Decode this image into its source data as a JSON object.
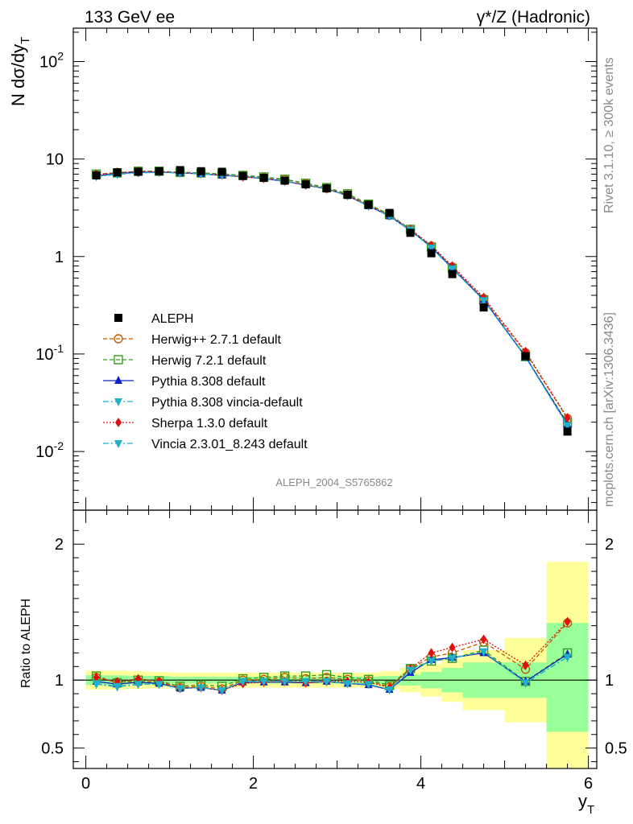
{
  "header": {
    "left_title": "133 GeV ee",
    "right_title": "γ*/Z (Hadronic)"
  },
  "side_labels": {
    "rivet": "Rivet 3.1.10, ≥ 300k events",
    "mcplots": "mcplots.cern.ch [arXiv:1306.3436]"
  },
  "analysis_id": "ALEPH_2004_S5765862",
  "chart_data": [
    {
      "type": "line",
      "panel": "main",
      "ylabel": "N dσ/dy_T",
      "yscale": "log",
      "ylim": [
        0.0025,
        220
      ],
      "xlim": [
        -0.15,
        6.1
      ],
      "yticks": [
        {
          "v": 0.01,
          "label": "10^-2"
        },
        {
          "v": 0.1,
          "label": "10^-1"
        },
        {
          "v": 1,
          "label": "1"
        },
        {
          "v": 10,
          "label": "10"
        },
        {
          "v": 100,
          "label": "10^2"
        }
      ],
      "x": [
        0.125,
        0.375,
        0.625,
        0.875,
        1.125,
        1.375,
        1.625,
        1.875,
        2.125,
        2.375,
        2.625,
        2.875,
        3.125,
        3.375,
        3.625,
        3.875,
        4.125,
        4.375,
        4.75,
        5.25,
        5.75
      ],
      "data": {
        "name": "ALEPH",
        "values": [
          6.8,
          7.3,
          7.4,
          7.5,
          7.7,
          7.5,
          7.4,
          6.7,
          6.4,
          6.0,
          5.5,
          5.0,
          4.3,
          3.4,
          2.8,
          1.75,
          1.08,
          0.66,
          0.3,
          0.095,
          0.016
        ]
      },
      "series": [
        {
          "name": "Herwig++ 2.7.1 default",
          "color": "#c05a00",
          "dash": "5,3",
          "marker": "circle-open",
          "values": [
            6.9,
            7.3,
            7.4,
            7.45,
            7.3,
            7.2,
            7.0,
            6.75,
            6.45,
            6.15,
            5.6,
            5.0,
            4.3,
            3.4,
            2.65,
            1.9,
            1.28,
            0.78,
            0.37,
            0.103,
            0.0218
          ]
        },
        {
          "name": "Herwig 7.2.1 default",
          "color": "#3a9a20",
          "dash": "5,3",
          "marker": "square-open",
          "values": [
            7.0,
            7.2,
            7.5,
            7.5,
            7.3,
            7.2,
            7.05,
            6.8,
            6.55,
            6.2,
            5.65,
            5.1,
            4.4,
            3.45,
            2.7,
            1.9,
            1.25,
            0.76,
            0.36,
            0.094,
            0.0195
          ]
        },
        {
          "name": "Pythia 8.308 default",
          "color": "#1020c0",
          "dash": "",
          "marker": "triangle-up",
          "values": [
            6.7,
            7.1,
            7.3,
            7.35,
            7.2,
            7.05,
            6.8,
            6.6,
            6.3,
            5.9,
            5.4,
            4.95,
            4.2,
            3.3,
            2.6,
            1.85,
            1.25,
            0.76,
            0.36,
            0.094,
            0.019
          ]
        },
        {
          "name": "Pythia 8.308 vincia-default",
          "color": "#20b0c8",
          "dash": "7,3,2,3",
          "marker": "triangle-down",
          "values": [
            6.6,
            6.95,
            7.2,
            7.3,
            7.2,
            7.05,
            6.85,
            6.65,
            6.35,
            5.95,
            5.45,
            4.95,
            4.2,
            3.3,
            2.6,
            1.88,
            1.23,
            0.75,
            0.355,
            0.093,
            0.0185
          ]
        },
        {
          "name": "Sherpa 1.3.0 default",
          "color": "#e01010",
          "dash": "2,2",
          "marker": "diamond",
          "values": [
            6.95,
            7.2,
            7.5,
            7.4,
            7.25,
            7.1,
            6.85,
            6.55,
            6.3,
            5.95,
            5.4,
            4.95,
            4.25,
            3.35,
            2.65,
            1.9,
            1.3,
            0.8,
            0.38,
            0.106,
            0.0222
          ]
        },
        {
          "name": "Vincia 2.3.01_8.243 default",
          "color": "#20b0c8",
          "dash": "7,3,2,3",
          "marker": "triangle-down",
          "values": [
            6.65,
            7.0,
            7.25,
            7.3,
            7.2,
            7.05,
            6.85,
            6.65,
            6.35,
            5.95,
            5.45,
            4.95,
            4.2,
            3.3,
            2.6,
            1.88,
            1.23,
            0.75,
            0.355,
            0.093,
            0.0185
          ]
        }
      ]
    },
    {
      "type": "line",
      "panel": "ratio",
      "ylabel": "Ratio to ALEPH",
      "xlabel": "y_T",
      "ylim": [
        0.35,
        2.25
      ],
      "xlim": [
        -0.15,
        6.1
      ],
      "xticks": [
        0,
        2,
        4,
        6
      ],
      "yticks": [
        0.5,
        1,
        2
      ],
      "band_edges": [
        0,
        0.25,
        0.5,
        0.75,
        1.0,
        1.25,
        1.5,
        1.75,
        2.0,
        2.25,
        2.5,
        2.75,
        3.0,
        3.25,
        3.5,
        3.75,
        4.0,
        4.25,
        4.5,
        5.0,
        5.5,
        6.0
      ],
      "band_inner": [
        [
          0.965,
          1.035
        ],
        [
          0.965,
          1.035
        ],
        [
          0.97,
          1.03
        ],
        [
          0.97,
          1.03
        ],
        [
          0.975,
          1.025
        ],
        [
          0.975,
          1.025
        ],
        [
          0.975,
          1.025
        ],
        [
          0.975,
          1.025
        ],
        [
          0.975,
          1.025
        ],
        [
          0.975,
          1.025
        ],
        [
          0.975,
          1.025
        ],
        [
          0.975,
          1.025
        ],
        [
          0.975,
          1.025
        ],
        [
          0.975,
          1.025
        ],
        [
          0.97,
          1.03
        ],
        [
          0.96,
          1.04
        ],
        [
          0.94,
          1.06
        ],
        [
          0.91,
          1.09
        ],
        [
          0.87,
          1.13
        ],
        [
          0.87,
          1.13
        ],
        [
          0.62,
          1.42
        ]
      ],
      "band_outer": [
        [
          0.93,
          1.07
        ],
        [
          0.93,
          1.07
        ],
        [
          0.935,
          1.065
        ],
        [
          0.94,
          1.06
        ],
        [
          0.945,
          1.055
        ],
        [
          0.945,
          1.055
        ],
        [
          0.945,
          1.055
        ],
        [
          0.945,
          1.055
        ],
        [
          0.945,
          1.055
        ],
        [
          0.945,
          1.055
        ],
        [
          0.945,
          1.055
        ],
        [
          0.945,
          1.055
        ],
        [
          0.945,
          1.055
        ],
        [
          0.945,
          1.055
        ],
        [
          0.935,
          1.065
        ],
        [
          0.91,
          1.09
        ],
        [
          0.88,
          1.12
        ],
        [
          0.84,
          1.16
        ],
        [
          0.78,
          1.22
        ],
        [
          0.69,
          1.31
        ],
        [
          0.35,
          1.87
        ]
      ],
      "x": [
        0.125,
        0.375,
        0.625,
        0.875,
        1.125,
        1.375,
        1.625,
        1.875,
        2.125,
        2.375,
        2.625,
        2.875,
        3.125,
        3.375,
        3.625,
        3.875,
        4.125,
        4.375,
        4.75,
        5.25,
        5.75
      ],
      "series": [
        {
          "name": "Herwig++ 2.7.1 default",
          "values": [
            1.02,
            0.985,
            0.99,
            0.985,
            0.945,
            0.955,
            0.935,
            1.0,
            1.005,
            1.02,
            1.01,
            1.02,
            1.005,
            0.995,
            0.95,
            1.085,
            1.17,
            1.2,
            1.28,
            1.08,
            1.42
          ]
        },
        {
          "name": "Herwig 7.2.1 default",
          "values": [
            1.03,
            0.98,
            1.0,
            0.995,
            0.955,
            0.965,
            0.955,
            1.01,
            1.02,
            1.03,
            1.03,
            1.04,
            1.02,
            1.005,
            0.96,
            1.085,
            1.14,
            1.16,
            1.22,
            0.99,
            1.2
          ]
        },
        {
          "name": "Pythia 8.308 default",
          "values": [
            0.99,
            0.97,
            0.985,
            0.975,
            0.94,
            0.945,
            0.925,
            0.985,
            0.985,
            0.985,
            0.98,
            0.99,
            0.975,
            0.965,
            0.93,
            1.055,
            1.15,
            1.165,
            1.2,
            0.99,
            1.19
          ]
        },
        {
          "name": "Pythia 8.308 vincia-default",
          "values": [
            0.97,
            0.95,
            0.97,
            0.97,
            0.94,
            0.945,
            0.925,
            0.99,
            0.99,
            0.99,
            0.99,
            0.99,
            0.975,
            0.97,
            0.93,
            1.075,
            1.14,
            1.16,
            1.21,
            0.98,
            1.17
          ]
        },
        {
          "name": "Sherpa 1.3.0 default",
          "values": [
            1.02,
            0.985,
            1.01,
            0.99,
            0.94,
            0.945,
            0.925,
            0.975,
            0.985,
            0.99,
            0.98,
            0.99,
            0.99,
            0.985,
            0.945,
            1.085,
            1.2,
            1.24,
            1.3,
            1.11,
            1.43
          ]
        },
        {
          "name": "Vincia 2.3.01_8.243 default",
          "values": [
            0.975,
            0.955,
            0.97,
            0.97,
            0.94,
            0.945,
            0.925,
            0.99,
            0.99,
            0.99,
            0.99,
            0.99,
            0.975,
            0.97,
            0.93,
            1.075,
            1.14,
            1.16,
            1.21,
            0.98,
            1.17
          ]
        }
      ]
    }
  ]
}
